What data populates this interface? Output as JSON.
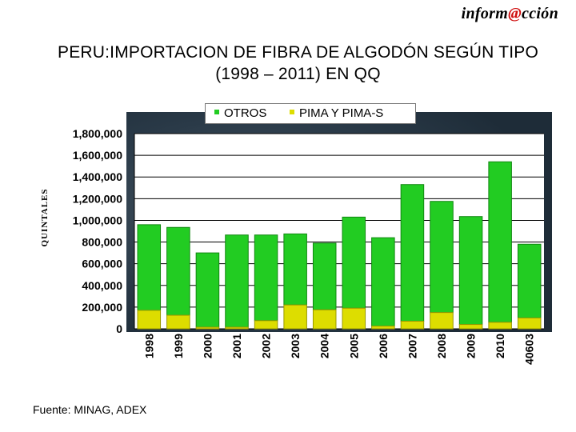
{
  "brand": {
    "prefix": "inform",
    "at": "@",
    "suffix": "cción"
  },
  "title_line1": "PERU:IMPORTACION DE FIBRA DE ALGODÓN SEGÚN TIPO",
  "title_line2": "(1998 – 2011) EN QQ",
  "colors": {
    "otros": "#22cc22",
    "pima": "#dddd00",
    "otros_dark": "#118811",
    "pima_dark": "#999900"
  },
  "chart_data": {
    "type": "bar",
    "stacked": true,
    "title": "PERU:IMPORTACION DE FIBRA DE ALGODÓN SEGÚN TIPO (1998 – 2011) EN QQ",
    "ylabel": "QUINTALES",
    "xlabel": "",
    "ylim": [
      0,
      1800000
    ],
    "yticks": [
      0,
      200000,
      400000,
      600000,
      800000,
      1000000,
      1200000,
      1400000,
      1600000,
      1800000
    ],
    "ytick_labels": [
      "0",
      "200,000",
      "400,000",
      "600,000",
      "800,000",
      "1,000,000",
      "1,200,000",
      "1,400,000",
      "1,600,000",
      "1,800,000"
    ],
    "categories": [
      "1998",
      "1999",
      "2000",
      "2001",
      "2002",
      "2003",
      "2004",
      "2005",
      "2006",
      "2007",
      "2008",
      "2009",
      "2010",
      "40603"
    ],
    "series": [
      {
        "name": "PIMA Y PIMA-S",
        "values": [
          170000,
          125000,
          15000,
          15000,
          75000,
          220000,
          175000,
          190000,
          25000,
          70000,
          150000,
          40000,
          60000,
          100000
        ]
      },
      {
        "name": "OTROS",
        "values": [
          790000,
          810000,
          685000,
          850000,
          790000,
          655000,
          615000,
          840000,
          815000,
          1260000,
          1025000,
          995000,
          1480000,
          680000
        ]
      }
    ],
    "legend": [
      "OTROS",
      "PIMA Y PIMA-S"
    ],
    "legend_position": "top"
  },
  "source": "Fuente: MINAG, ADEX"
}
